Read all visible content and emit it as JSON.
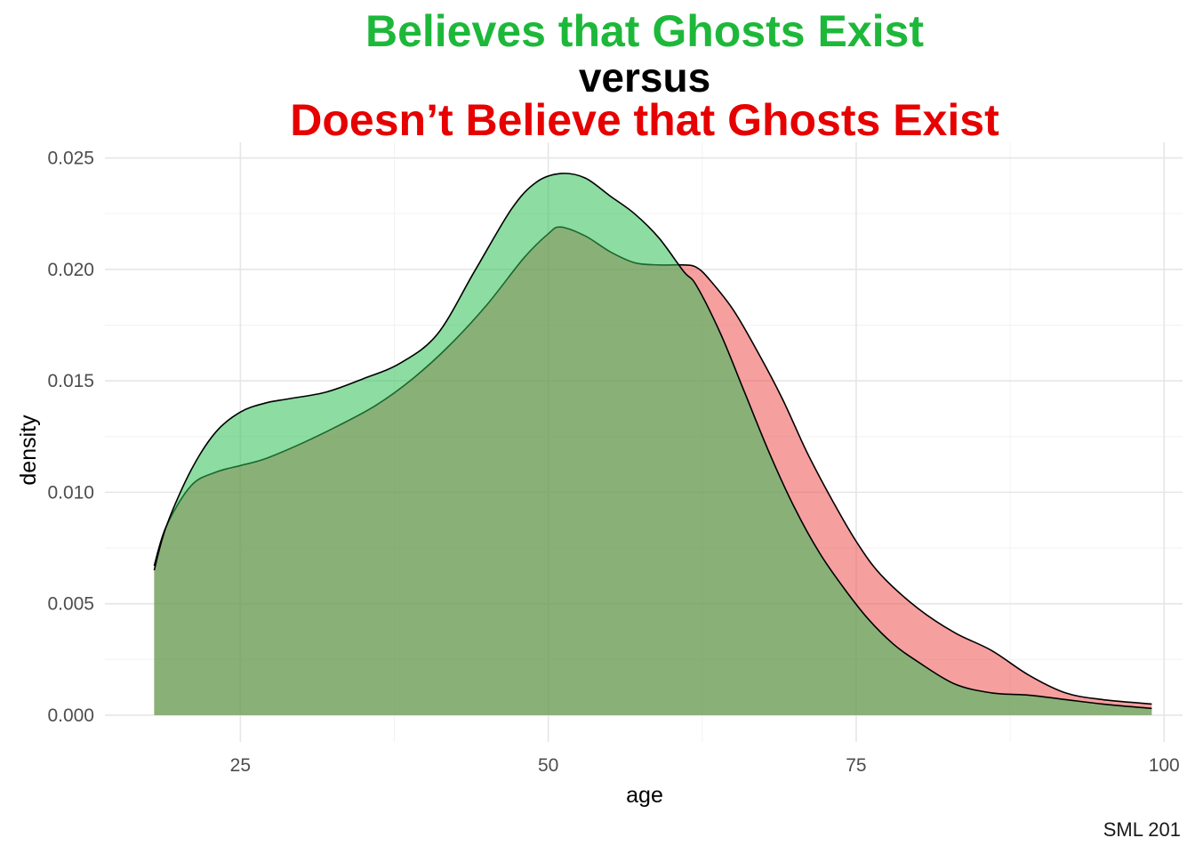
{
  "chart_data": {
    "type": "area",
    "title_lines": [
      {
        "text": "Believes that Ghosts Exist",
        "color": "#1db83a"
      },
      {
        "text": "versus",
        "color": "#000000"
      },
      {
        "text": "Doesn’t Believe that Ghosts Exist",
        "color": "#e60000"
      }
    ],
    "xlabel": "age",
    "ylabel": "density",
    "caption": "SML 201",
    "xlim": [
      14,
      101.5
    ],
    "ylim": [
      -0.0012,
      0.0257
    ],
    "x_ticks": [
      25,
      50,
      75,
      100
    ],
    "x_tick_labels": [
      "25",
      "50",
      "75",
      "100"
    ],
    "y_ticks": [
      0.0,
      0.005,
      0.01,
      0.015,
      0.02,
      0.025
    ],
    "y_tick_labels": [
      "0.000",
      "0.005",
      "0.010",
      "0.015",
      "0.020",
      "0.025"
    ],
    "grid": true,
    "series": [
      {
        "group": "doesnt_believe",
        "color": "#ef5050",
        "x": [
          18,
          19,
          21,
          23,
          25,
          27,
          30,
          33,
          36,
          39,
          42,
          45,
          48,
          50,
          51,
          53,
          55,
          57,
          59,
          61,
          62,
          63,
          65,
          67,
          69,
          71,
          73,
          75,
          77,
          80,
          83,
          86,
          89,
          92,
          95,
          99
        ],
        "values": [
          0.0067,
          0.0085,
          0.0103,
          0.0109,
          0.0112,
          0.0115,
          0.0122,
          0.013,
          0.0139,
          0.0151,
          0.0166,
          0.0184,
          0.0205,
          0.0216,
          0.0219,
          0.0215,
          0.0208,
          0.0203,
          0.0202,
          0.0202,
          0.0201,
          0.0196,
          0.0182,
          0.0163,
          0.0142,
          0.0118,
          0.0097,
          0.0078,
          0.0063,
          0.0048,
          0.0037,
          0.0029,
          0.0018,
          0.001,
          0.0007,
          0.0005
        ]
      },
      {
        "group": "believes",
        "color": "#2fbf55",
        "x": [
          18,
          19,
          21,
          23,
          25,
          27,
          29,
          32,
          35,
          38,
          41,
          44,
          47,
          49,
          51,
          53,
          55,
          57,
          59,
          61,
          62,
          64,
          66,
          68,
          70,
          72,
          74,
          76,
          78,
          80,
          83,
          86,
          89,
          92,
          95,
          99
        ],
        "values": [
          0.0065,
          0.0085,
          0.011,
          0.0127,
          0.0136,
          0.014,
          0.0142,
          0.0145,
          0.0151,
          0.0158,
          0.0171,
          0.0199,
          0.0227,
          0.0239,
          0.0243,
          0.0241,
          0.0233,
          0.0225,
          0.0214,
          0.0199,
          0.0193,
          0.0171,
          0.0144,
          0.0117,
          0.0093,
          0.0073,
          0.0057,
          0.0043,
          0.0032,
          0.0024,
          0.0014,
          0.001,
          0.0009,
          0.0007,
          0.0005,
          0.0003
        ]
      }
    ]
  }
}
